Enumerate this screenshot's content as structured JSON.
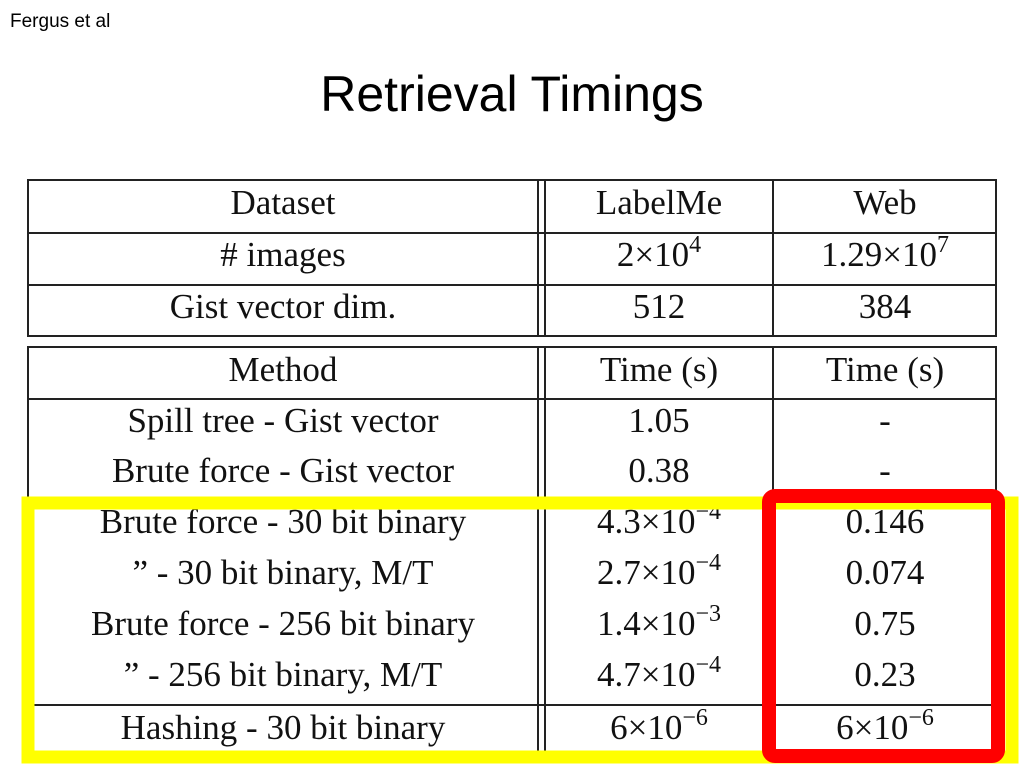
{
  "header": {
    "author": "Fergus et al",
    "title": "Retrieval Timings"
  },
  "table1": {
    "rows": [
      [
        "Dataset",
        "LabelMe",
        "Web"
      ],
      [
        "# images",
        {
          "text": "2×10",
          "sup": "4"
        },
        {
          "text": "1.29×10",
          "sup": "7"
        }
      ],
      [
        "Gist vector dim.",
        "512",
        "384"
      ]
    ]
  },
  "table2": {
    "rows": [
      [
        "Method",
        "Time (s)",
        "Time (s)"
      ],
      [
        "Spill tree - Gist vector",
        "1.05",
        "-"
      ],
      [
        "Brute force - Gist vector",
        "0.38",
        "-"
      ],
      [
        "Brute force - 30 bit binary",
        {
          "text": "4.3×10",
          "sup": "−4"
        },
        "0.146"
      ],
      [
        "” - 30 bit binary, M/T",
        {
          "text": "2.7×10",
          "sup": "−4"
        },
        "0.074"
      ],
      [
        "Brute force - 256 bit binary",
        {
          "text": "1.4×10",
          "sup": "−3"
        },
        "0.75"
      ],
      [
        "” - 256 bit binary, M/T",
        {
          "text": "4.7×10",
          "sup": "−4"
        },
        "0.23"
      ],
      [
        "Hashing - 30 bit binary",
        {
          "text": "6×10",
          "sup": "−6"
        },
        {
          "text": "6×10",
          "sup": "−6"
        }
      ]
    ]
  }
}
